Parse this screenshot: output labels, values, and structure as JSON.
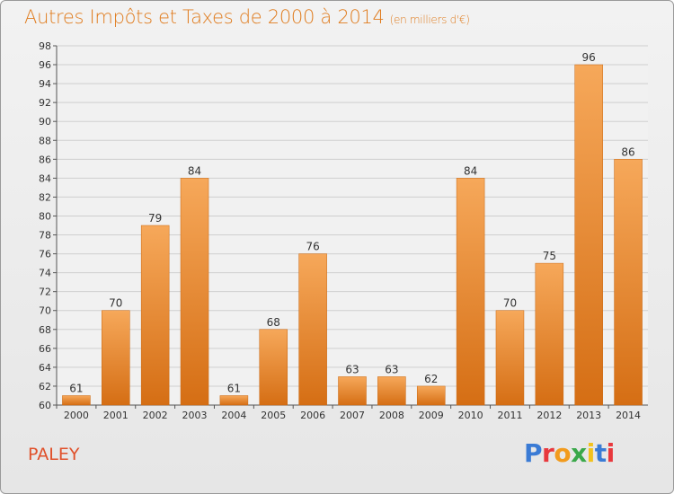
{
  "header": {
    "title": "Autres Impôts et Taxes de 2000 à 2014",
    "subtitle": "(en milliers d'€)"
  },
  "footer": {
    "commune": "PALEY",
    "logo_text": "Proxiti"
  },
  "colors": {
    "accent": "#e07c1e",
    "bar_top": "#f6a85a",
    "bar_bottom": "#d56e14",
    "commune": "#e0502a"
  },
  "chart_data": {
    "type": "bar",
    "title": "Autres Impôts et Taxes de 2000 à 2014",
    "subtitle": "(en milliers d'€)",
    "xlabel": "",
    "ylabel": "",
    "categories": [
      "2000",
      "2001",
      "2002",
      "2003",
      "2004",
      "2005",
      "2006",
      "2007",
      "2008",
      "2009",
      "2010",
      "2011",
      "2012",
      "2013",
      "2014"
    ],
    "values": [
      61,
      70,
      79,
      84,
      61,
      68,
      76,
      63,
      63,
      62,
      84,
      70,
      75,
      96,
      86
    ],
    "ylim": [
      60,
      98
    ],
    "yticks": [
      60,
      62,
      64,
      66,
      68,
      70,
      72,
      74,
      76,
      78,
      80,
      82,
      84,
      86,
      88,
      90,
      92,
      94,
      96,
      98
    ],
    "grid": true,
    "legend": "none"
  }
}
